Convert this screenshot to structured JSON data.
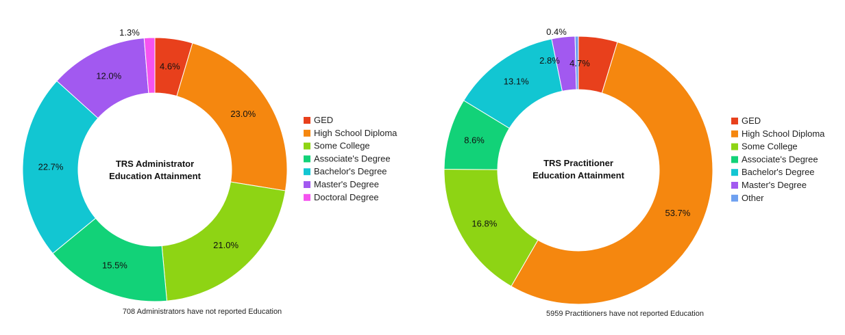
{
  "chart_data": [
    {
      "type": "pie",
      "variant": "donut",
      "title_lines": [
        "TRS Administrator",
        "Education Attainment"
      ],
      "categories": [
        "GED",
        "High School Diploma",
        "Some College",
        "Associate's Degree",
        "Bachelor's Degree",
        "Master's Degree",
        "Doctoral Degree"
      ],
      "values": [
        4.6,
        23.0,
        21.0,
        15.5,
        22.7,
        12.0,
        1.3
      ],
      "labels": [
        "4.6%",
        "23.0%",
        "21.0%",
        "15.5%",
        "22.7%",
        "12.0%",
        "1.3%"
      ],
      "colors": [
        "#e8401c",
        "#f5870f",
        "#8ed414",
        "#12d278",
        "#12c6d2",
        "#a259f0",
        "#f553ef"
      ],
      "legend_position": "right",
      "footnote": "708 Administrators have not reported Education"
    },
    {
      "type": "pie",
      "variant": "donut",
      "title_lines": [
        "TRS Practitioner",
        "Education Attainment"
      ],
      "categories": [
        "GED",
        "High School Diploma",
        "Some College",
        "Associate's Degree",
        "Bachelor's Degree",
        "Master's Degree",
        "Other"
      ],
      "values": [
        4.7,
        53.7,
        16.8,
        8.6,
        13.1,
        2.8,
        0.4
      ],
      "labels": [
        "4.7%",
        "53.7%",
        "16.8%",
        "8.6%",
        "13.1%",
        "2.8%",
        "0.4%"
      ],
      "colors": [
        "#e8401c",
        "#f5870f",
        "#8ed414",
        "#12d278",
        "#12c6d2",
        "#a259f0",
        "#6ea0f0"
      ],
      "legend_position": "right",
      "footnote": "5959 Practitioners have not reported Education"
    }
  ]
}
